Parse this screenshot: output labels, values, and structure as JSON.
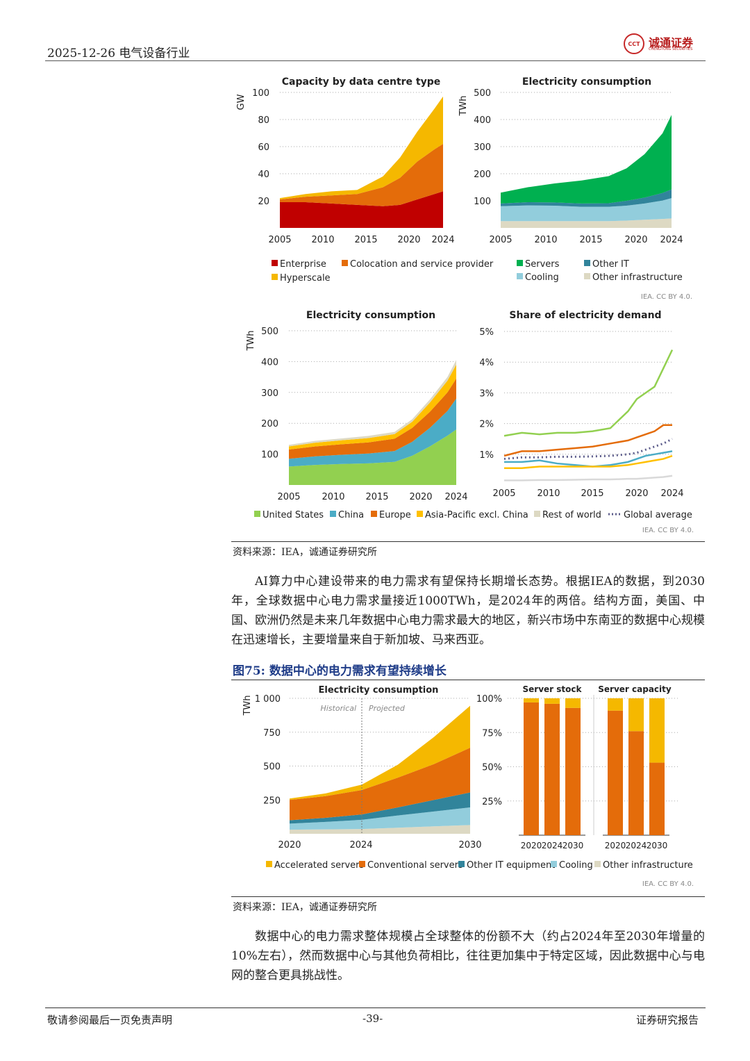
{
  "header": {
    "date_title": "2025-12-26 电气设备行业",
    "logo_name": "诚通证券",
    "logo_sub": "CHENGTONG SECURITIES",
    "logo_mark": "CCT"
  },
  "chart_data": [
    {
      "type": "area",
      "title": "Capacity by data centre type",
      "ylabel": "GW",
      "ylim": [
        0,
        100
      ],
      "yticks": [
        20,
        40,
        60,
        80,
        100
      ],
      "xticks": [
        "2005",
        "2010",
        "2015",
        "2020",
        "2024"
      ],
      "x": [
        2005,
        2008,
        2011,
        2014,
        2017,
        2019,
        2021,
        2023,
        2024
      ],
      "series": [
        {
          "name": "Enterprise",
          "color": "#c00000",
          "values": [
            19,
            19,
            18,
            17,
            16,
            17,
            21,
            25,
            27
          ]
        },
        {
          "name": "Colocation and service provider",
          "color": "#e46c0a",
          "values": [
            2,
            4,
            6,
            8,
            14,
            20,
            28,
            33,
            35
          ]
        },
        {
          "name": "Hyperscale",
          "color": "#f5b800",
          "values": [
            1,
            2,
            3,
            3,
            8,
            15,
            22,
            30,
            35
          ]
        }
      ],
      "attribution": ""
    },
    {
      "type": "area",
      "title": "Electricity consumption",
      "ylabel": "TWh",
      "ylim": [
        0,
        500
      ],
      "yticks": [
        100,
        200,
        300,
        400,
        500
      ],
      "xticks": [
        "2005",
        "2010",
        "2015",
        "2020",
        "2024"
      ],
      "x": [
        2005,
        2008,
        2011,
        2014,
        2017,
        2019,
        2021,
        2023,
        2024
      ],
      "series": [
        {
          "name": "Other infrastructure",
          "color": "#ddd9c3",
          "values": [
            25,
            25,
            25,
            25,
            25,
            27,
            30,
            33,
            35
          ]
        },
        {
          "name": "Cooling",
          "color": "#92cddc",
          "values": [
            55,
            58,
            57,
            53,
            53,
            55,
            60,
            68,
            75
          ]
        },
        {
          "name": "Other IT",
          "color": "#31849b",
          "values": [
            10,
            12,
            12,
            12,
            13,
            18,
            22,
            28,
            32
          ]
        },
        {
          "name": "Servers",
          "color": "#00b050",
          "values": [
            40,
            55,
            70,
            85,
            100,
            120,
            160,
            220,
            275
          ]
        }
      ],
      "attribution": "IEA. CC BY 4.0."
    },
    {
      "type": "area",
      "title": "Electricity consumption",
      "ylabel": "TWh",
      "ylim": [
        0,
        500
      ],
      "yticks": [
        100,
        200,
        300,
        400,
        500
      ],
      "xticks": [
        "2005",
        "2010",
        "2015",
        "2020",
        "2024"
      ],
      "x": [
        2005,
        2008,
        2011,
        2014,
        2017,
        2019,
        2021,
        2023,
        2024
      ],
      "series": [
        {
          "name": "United States",
          "color": "#92d050",
          "values": [
            60,
            65,
            68,
            70,
            75,
            95,
            125,
            160,
            180
          ]
        },
        {
          "name": "China",
          "color": "#4bacc6",
          "values": [
            25,
            28,
            30,
            32,
            35,
            45,
            60,
            80,
            100
          ]
        },
        {
          "name": "Europe",
          "color": "#e46c0a",
          "values": [
            30,
            32,
            34,
            36,
            40,
            45,
            52,
            60,
            65
          ]
        },
        {
          "name": "Asia-Pacific excl. China",
          "color": "#ffc000",
          "values": [
            10,
            12,
            13,
            14,
            15,
            20,
            30,
            38,
            45
          ]
        },
        {
          "name": "Rest of world",
          "color": "#ddd9c3",
          "values": [
            5,
            6,
            6,
            7,
            7,
            8,
            10,
            12,
            15
          ]
        }
      ],
      "attribution": ""
    },
    {
      "type": "line",
      "title": "Share of electricity demand",
      "ylabel": "",
      "ylim": [
        0,
        5
      ],
      "yticks": [
        "1%",
        "2%",
        "3%",
        "4%",
        "5%"
      ],
      "ytick_values": [
        1,
        2,
        3,
        4,
        5
      ],
      "xticks": [
        "2005",
        "2010",
        "2015",
        "2020",
        "2024"
      ],
      "x": [
        2005,
        2007,
        2009,
        2011,
        2013,
        2015,
        2017,
        2019,
        2020,
        2021,
        2022,
        2023,
        2024
      ],
      "series": [
        {
          "name": "United States",
          "color": "#92d050",
          "style": "solid",
          "values": [
            1.6,
            1.7,
            1.65,
            1.7,
            1.7,
            1.75,
            1.85,
            2.4,
            2.8,
            3.0,
            3.2,
            3.8,
            4.4
          ]
        },
        {
          "name": "Europe",
          "color": "#e46c0a",
          "style": "solid",
          "values": [
            0.95,
            1.1,
            1.1,
            1.15,
            1.2,
            1.25,
            1.35,
            1.45,
            1.55,
            1.65,
            1.75,
            1.95,
            1.95
          ]
        },
        {
          "name": "Global average",
          "color": "#5b5b8a",
          "style": "dotted",
          "values": [
            0.85,
            0.9,
            0.9,
            0.92,
            0.92,
            0.93,
            0.95,
            1.0,
            1.05,
            1.15,
            1.25,
            1.35,
            1.5
          ]
        },
        {
          "name": "China",
          "color": "#4bacc6",
          "style": "solid",
          "values": [
            0.75,
            0.75,
            0.8,
            0.7,
            0.65,
            0.6,
            0.65,
            0.75,
            0.85,
            0.95,
            1.0,
            1.05,
            1.1
          ]
        },
        {
          "name": "Asia-Pacific excl. China",
          "color": "#ffc000",
          "style": "solid",
          "values": [
            0.55,
            0.55,
            0.6,
            0.6,
            0.6,
            0.6,
            0.6,
            0.65,
            0.7,
            0.75,
            0.8,
            0.85,
            0.95
          ]
        },
        {
          "name": "Rest of world",
          "color": "#d9d9d9",
          "style": "solid",
          "values": [
            0.15,
            0.15,
            0.16,
            0.16,
            0.17,
            0.18,
            0.18,
            0.2,
            0.2,
            0.22,
            0.24,
            0.26,
            0.3
          ]
        }
      ],
      "attribution": "IEA. CC BY 4.0."
    },
    {
      "type": "area",
      "title": "Electricity consumption",
      "ylabel": "TWh",
      "ylim": [
        0,
        1000
      ],
      "yticks": [
        "250",
        "500",
        "750",
        "1 000"
      ],
      "ytick_values": [
        250,
        500,
        750,
        1000
      ],
      "xticks": [
        "2020",
        "2024",
        "2030"
      ],
      "x": [
        2020,
        2022,
        2024,
        2026,
        2028,
        2030
      ],
      "annotations": [
        "Historical",
        "Projected"
      ],
      "split_year": 2024,
      "series": [
        {
          "name": "Other infrastructure",
          "color": "#ddd9c3",
          "values": [
            30,
            33,
            35,
            45,
            55,
            65
          ]
        },
        {
          "name": "Cooling",
          "color": "#92cddc",
          "values": [
            45,
            55,
            68,
            90,
            110,
            130
          ]
        },
        {
          "name": "Other IT equipment",
          "color": "#31849b",
          "values": [
            25,
            30,
            40,
            60,
            85,
            110
          ]
        },
        {
          "name": "Conventional servers",
          "color": "#e46c0a",
          "values": [
            150,
            160,
            180,
            220,
            265,
            330
          ]
        },
        {
          "name": "Accelerated servers",
          "color": "#f5b800",
          "values": [
            10,
            20,
            40,
            95,
            200,
            310
          ]
        }
      ],
      "attribution": ""
    },
    {
      "type": "bar",
      "title": "Server stock",
      "stacked": true,
      "percent": true,
      "categories": [
        "2020",
        "2024",
        "2030"
      ],
      "yticks": [
        "25%",
        "50%",
        "75%",
        "100%"
      ],
      "ytick_values": [
        25,
        50,
        75,
        100
      ],
      "series": [
        {
          "name": "Conventional servers",
          "color": "#e46c0a",
          "values": [
            97,
            96,
            93
          ]
        },
        {
          "name": "Accelerated servers",
          "color": "#f5b800",
          "values": [
            3,
            4,
            7
          ]
        }
      ]
    },
    {
      "type": "bar",
      "title": "Server capacity",
      "stacked": true,
      "percent": true,
      "categories": [
        "2020",
        "2024",
        "2030"
      ],
      "series": [
        {
          "name": "Conventional servers",
          "color": "#e46c0a",
          "values": [
            91,
            76,
            53
          ]
        },
        {
          "name": "Accelerated servers",
          "color": "#f5b800",
          "values": [
            9,
            24,
            47
          ]
        }
      ],
      "attribution": "IEA. CC BY 4.0."
    }
  ],
  "legends": {
    "chart1": [
      "Enterprise",
      "Colocation and service provider",
      "Hyperscale"
    ],
    "chart2": [
      "Servers",
      "Other IT",
      "Cooling",
      "Other infrastructure"
    ],
    "chart3": [
      "United States",
      "China",
      "Europe",
      "Asia-Pacific excl. China",
      "Rest of world",
      "Global average"
    ],
    "chart5": [
      "Accelerated servers",
      "Conventional servers",
      "Other IT equipment",
      "Cooling",
      "Other infrastructure"
    ]
  },
  "source1": "资料来源：IEA，诚通证券研究所",
  "paragraph1": "AI算力中心建设带来的电力需求有望保持长期增长态势。根据IEA的数据，到2030年，全球数据中心电力需求量接近1000TWh，是2024年的两倍。结构方面，美国、中国、欧洲仍然是未来几年数据中心电力需求最大的地区，新兴市场中东南亚的数据中心规模在迅速增长，主要增量来自于新加坡、马来西亚。",
  "figure_title": "图75:    数据中心的电力需求有望持续增长",
  "source2": "资料来源：IEA，诚通证券研究所",
  "paragraph2": "数据中心的电力需求整体规模占全球整体的份额不大（约占2024年至2030年增量的10%左右），然而数据中心与其他负荷相比，往往更加集中于特定区域，因此数据中心与电网的整合更具挑战性。",
  "footer": {
    "left": "敬请参阅最后一页免责声明",
    "page": "-39-",
    "right": "证券研究报告"
  }
}
